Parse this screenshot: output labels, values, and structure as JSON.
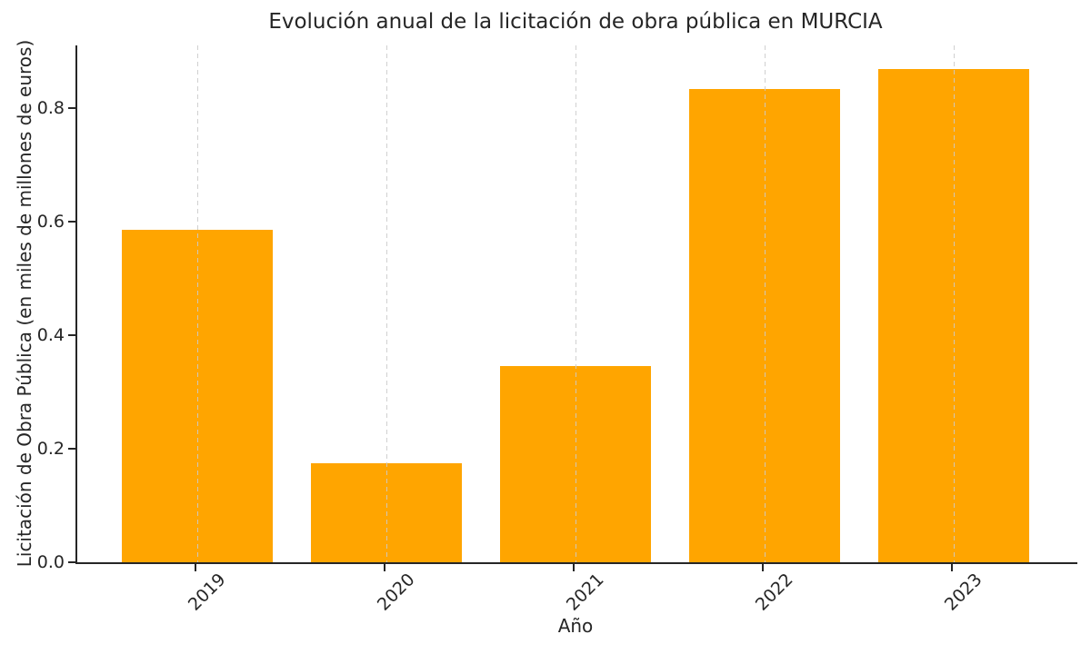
{
  "chart_data": {
    "type": "bar",
    "title": "Evolución anual de la licitación de obra pública en MURCIA",
    "xlabel": "Año",
    "ylabel": "Licitación de Obra Pública (en miles de millones de euros)",
    "categories": [
      "2019",
      "2020",
      "2021",
      "2022",
      "2023"
    ],
    "values": [
      0.585,
      0.175,
      0.346,
      0.833,
      0.868
    ],
    "ytick_labels": [
      "0.0",
      "0.2",
      "0.4",
      "0.6",
      "0.8"
    ],
    "ytick_values": [
      0.0,
      0.2,
      0.4,
      0.6,
      0.8
    ],
    "ylim": [
      0,
      0.91
    ],
    "bar_color": "#FFA500",
    "grid": {
      "orientation": "vertical",
      "style": "dashed",
      "color": "#cbcbcb",
      "drawn_over_bars": true
    },
    "spine_color": "#262626",
    "text_color": "#262626",
    "legend": null,
    "background": "#ffffff"
  }
}
